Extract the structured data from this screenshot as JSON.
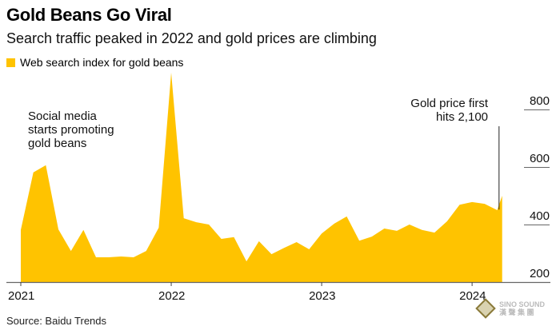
{
  "title": "Gold Beans Go Viral",
  "subtitle": "Search traffic peaked in 2022 and gold prices are climbing",
  "legend": {
    "label": "Web search index for gold beans",
    "color": "#FFC300"
  },
  "source": "Source: Baidu Trends",
  "watermark": {
    "line1": "SINO SOUND",
    "line2": "漢 聲 集 團"
  },
  "chart_data": {
    "type": "area",
    "title": "Gold Beans Go Viral",
    "subtitle": "Search traffic peaked in 2022 and gold prices are climbing",
    "xlabel": "",
    "ylabel": "",
    "ylim": [
      200,
      950
    ],
    "yticks": [
      200,
      400,
      600,
      800
    ],
    "ytick_labels": [
      "200",
      "400",
      "600",
      "800"
    ],
    "xticks": [
      {
        "label": "2021",
        "month_index": 0
      },
      {
        "label": "2022",
        "month_index": 12
      },
      {
        "label": "2023",
        "month_index": 24
      },
      {
        "label": "2024",
        "month_index": 36
      }
    ],
    "grid": false,
    "legend_position": "top-left",
    "series": [
      {
        "name": "Web search index for gold beans",
        "color": "#FFC300",
        "x_month_index": [
          0,
          1,
          2,
          3,
          4,
          5,
          6,
          7,
          8,
          9,
          10,
          11,
          12,
          13,
          14,
          15,
          16,
          17,
          18,
          19,
          20,
          21,
          22,
          23,
          24,
          25,
          26,
          27,
          28,
          29,
          30,
          31,
          32,
          33,
          34,
          35,
          36,
          37,
          38,
          38.4
        ],
        "values": [
          381,
          581,
          606,
          383,
          308,
          381,
          286,
          286,
          289,
          286,
          308,
          389,
          928,
          422,
          408,
          400,
          350,
          356,
          272,
          342,
          297,
          319,
          339,
          314,
          369,
          403,
          428,
          344,
          358,
          386,
          378,
          400,
          381,
          372,
          411,
          469,
          478,
          472,
          450,
          500
        ]
      }
    ],
    "annotations": [
      {
        "text_lines": [
          "Social media",
          "starts promoting",
          "gold beans"
        ],
        "month_index": 1
      },
      {
        "text_lines": [
          "Gold price first",
          "hits 2,100"
        ],
        "month_index": 38.15,
        "value": 452
      }
    ]
  }
}
